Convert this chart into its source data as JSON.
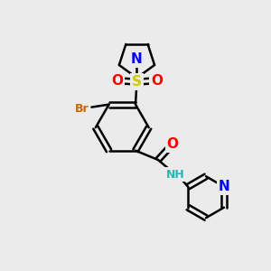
{
  "bg_color": "#ebebeb",
  "bond_color": "#000000",
  "bond_width": 1.8,
  "atom_colors": {
    "N": "#0000ff",
    "O": "#ff0000",
    "S": "#cccc00",
    "Br": "#cc6600",
    "C": "#000000",
    "H": "#2ab5b5",
    "NH": "#2ab5b5"
  }
}
